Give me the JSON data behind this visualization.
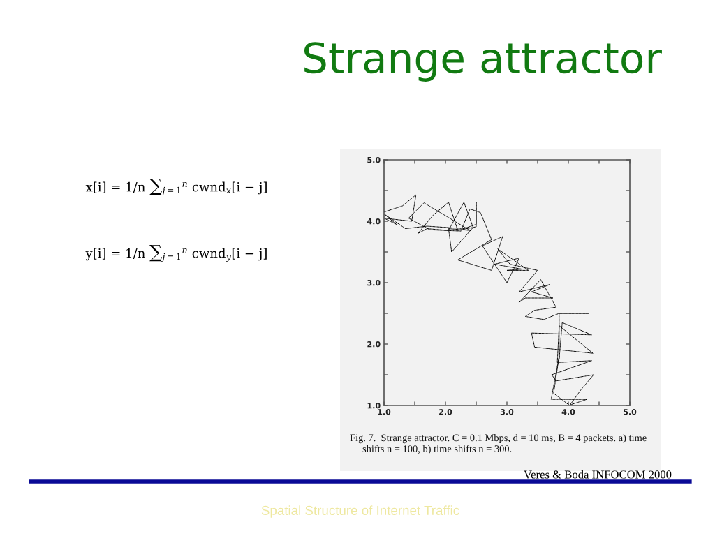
{
  "chart_data": {
    "type": "line",
    "title": "Strange attractor",
    "x": [
      1.0,
      1.3,
      1.52,
      1.45,
      1.0,
      1.2,
      1.0,
      1.35,
      1.7,
      2.0,
      2.3,
      2.5,
      2.5,
      2.5,
      2.2,
      2.05,
      1.8,
      1.55,
      1.7,
      2.05,
      2.3,
      2.45,
      2.1,
      2.05,
      2.4,
      1.65,
      1.4,
      1.75,
      2.25,
      2.4,
      2.57,
      2.75,
      2.2,
      2.75,
      2.93,
      2.6,
      3.0,
      3.2,
      2.8,
      3.25,
      3.0,
      3.35,
      2.85,
      3.05,
      3.5,
      3.2,
      3.7,
      3.4,
      3.75,
      3.3,
      3.2,
      3.55,
      3.8,
      3.45,
      3.3,
      3.6,
      3.85,
      4.33,
      3.85,
      3.85,
      3.9,
      4.38,
      3.4,
      3.45,
      4.4,
      3.85,
      3.82,
      4.38,
      3.73,
      3.8,
      4.41,
      4.2,
      4.02,
      3.76,
      3.85,
      3.72,
      4.3,
      4.0
    ],
    "values": [
      4.15,
      4.25,
      4.43,
      4.0,
      4.05,
      3.95,
      4.12,
      3.88,
      3.92,
      3.9,
      3.88,
      3.95,
      4.31,
      3.91,
      3.85,
      4.31,
      4.1,
      3.8,
      3.88,
      3.85,
      4.31,
      3.9,
      3.5,
      3.88,
      3.85,
      4.3,
      4.05,
      3.86,
      3.84,
      4.2,
      4.14,
      3.7,
      3.37,
      3.2,
      3.75,
      3.6,
      3.0,
      3.4,
      3.3,
      3.22,
      3.2,
      3.2,
      3.55,
      3.3,
      3.2,
      2.85,
      2.97,
      2.85,
      2.75,
      2.75,
      2.68,
      3.05,
      2.6,
      2.55,
      2.45,
      2.4,
      2.5,
      2.5,
      2.5,
      1.75,
      2.35,
      2.15,
      2.18,
      1.95,
      1.85,
      2.3,
      1.7,
      1.73,
      1.5,
      1.4,
      1.5,
      1.25,
      1.0,
      1.2,
      1.8,
      1.1,
      1.1,
      1.0
    ],
    "color": "#000000",
    "line_style": "dotted",
    "xlim": [
      1,
      5
    ],
    "ylim": [
      1,
      5
    ],
    "xticks": [
      {
        "value": 1,
        "label": "1.0"
      },
      {
        "value": 1.5,
        "label": null
      },
      {
        "value": 2,
        "label": "2.0"
      },
      {
        "value": 2.5,
        "label": null
      },
      {
        "value": 3,
        "label": "3.0"
      },
      {
        "value": 3.5,
        "label": null
      },
      {
        "value": 4,
        "label": "4.0"
      },
      {
        "value": 4.5,
        "label": null
      },
      {
        "value": 5,
        "label": "5.0"
      }
    ],
    "yticks": [
      {
        "value": 1,
        "label": "1.0"
      },
      {
        "value": 1.5,
        "label": null
      },
      {
        "value": 2,
        "label": "2.0"
      },
      {
        "value": 2.5,
        "label": null
      },
      {
        "value": 3,
        "label": "3.0"
      },
      {
        "value": 3.5,
        "label": null
      },
      {
        "value": 4,
        "label": "4.0"
      },
      {
        "value": 4.5,
        "label": null
      },
      {
        "value": 5,
        "label": "5.0"
      }
    ],
    "annotations": [
      "x[i] = 1/n ∑$_{j=1}$$^{n}$ cwnd$_{x}$[i − j]",
      "y[i] = 1/n ∑$_{j=1}$$^{n}$ cwnd$_{y}$[i − j]",
      "Fig. 7.  Strange attractor. C = 0.1 Mbps, d = 10 ms, B = 4 packets. a) time\n     shifts n = 100, b) time shifts n = 300.",
      "Veres & Boda INFOCOM 2000",
      "Spatial Structure of Internet Traffic"
    ]
  }
}
